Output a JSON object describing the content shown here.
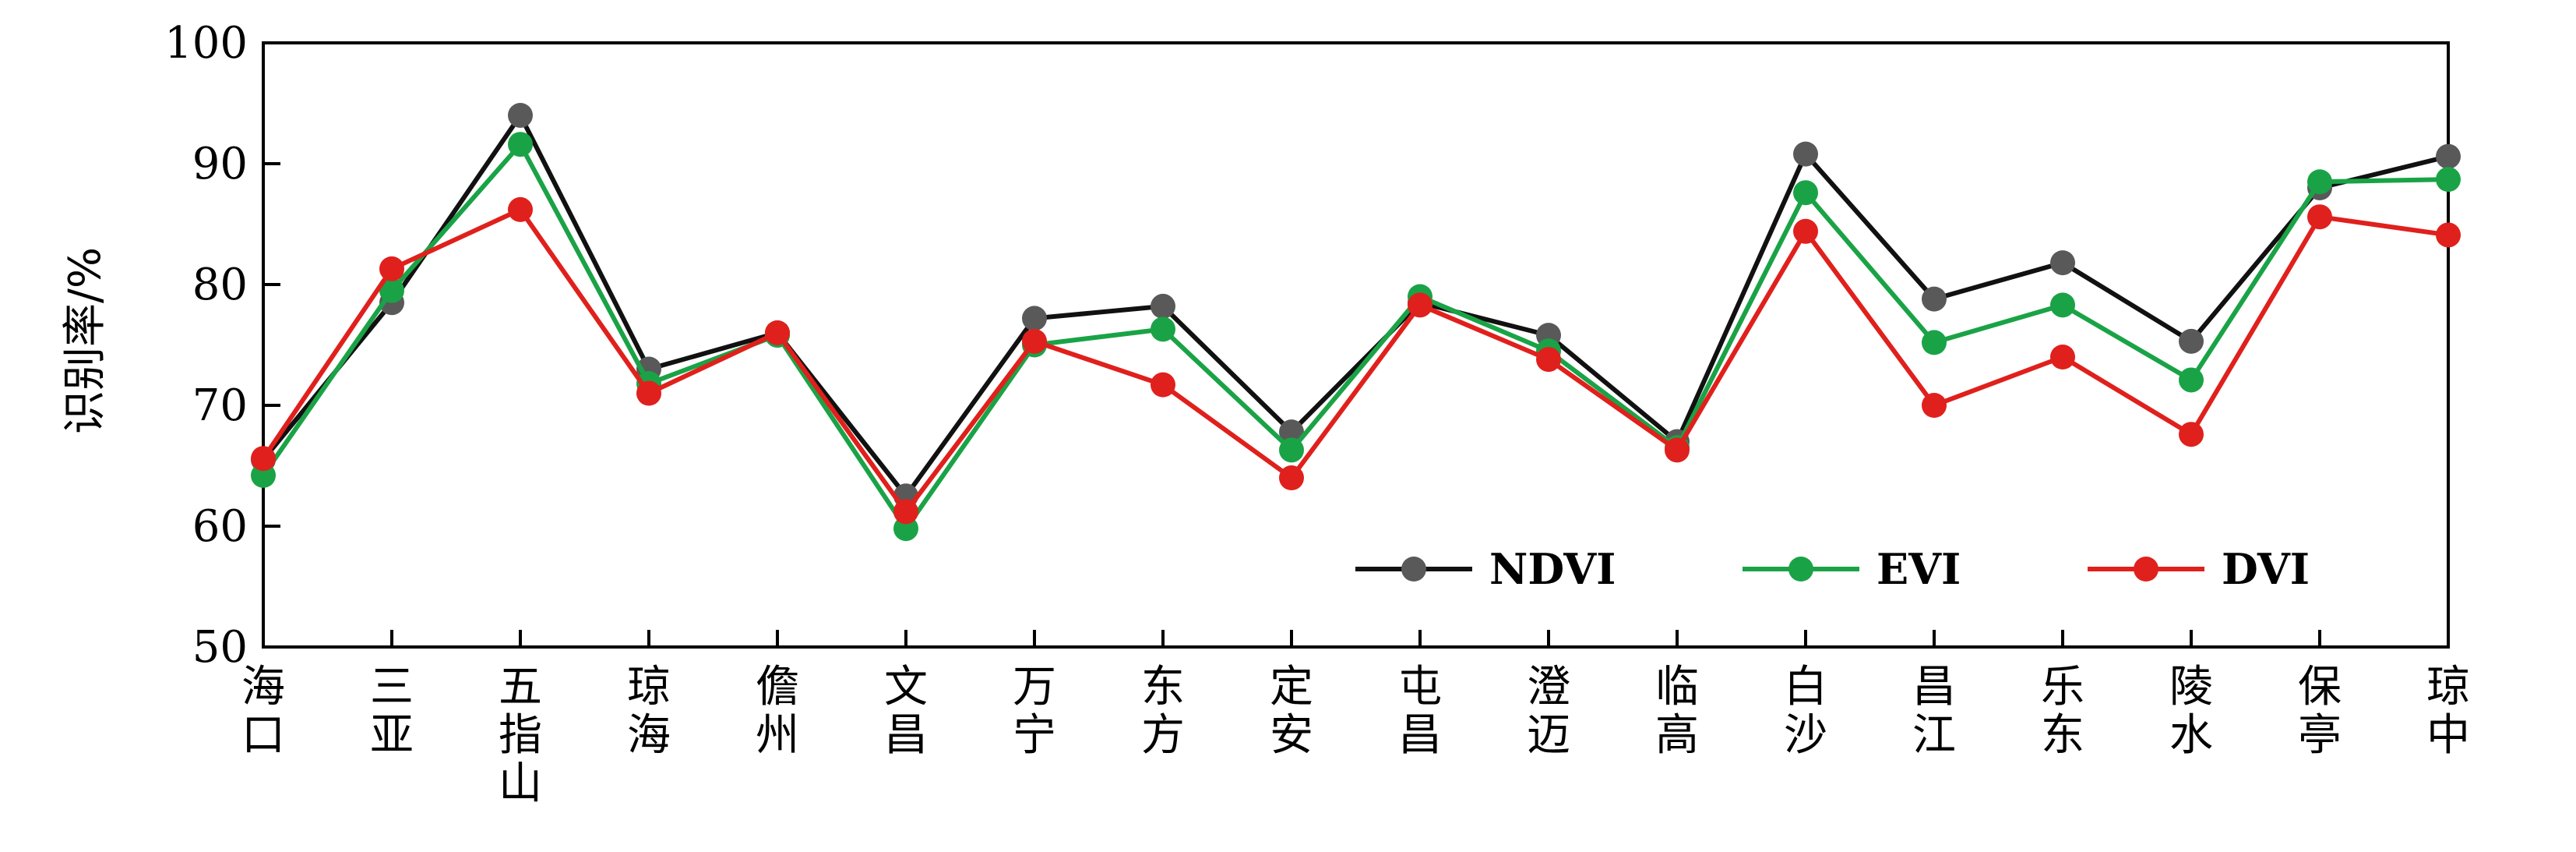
{
  "chart_data": {
    "type": "line",
    "ylabel": "识别率/%",
    "ylim": [
      50,
      100
    ],
    "yticks": [
      50,
      60,
      70,
      80,
      90,
      100
    ],
    "grid": false,
    "legend_position": "bottom-right",
    "categories": [
      "海口",
      "三亚",
      "五指山",
      "琼海",
      "儋州",
      "文昌",
      "万宁",
      "东方",
      "定安",
      "屯昌",
      "澄迈",
      "临高",
      "白沙",
      "昌江",
      "乐东",
      "陵水",
      "保亭",
      "琼中"
    ],
    "series": [
      {
        "name": "NDVI",
        "color": "#111111",
        "marker_color": "#595959",
        "values": [
          65.5,
          78.5,
          94.0,
          73.0,
          76.0,
          62.5,
          77.2,
          78.2,
          67.8,
          78.5,
          75.8,
          67.0,
          90.8,
          78.8,
          81.8,
          75.3,
          88.0,
          90.6
        ]
      },
      {
        "name": "EVI",
        "color": "#1aa346",
        "marker_color": "#1aa346",
        "values": [
          64.2,
          79.5,
          91.6,
          71.8,
          75.8,
          59.8,
          75.0,
          76.3,
          66.3,
          79.0,
          74.5,
          66.5,
          87.6,
          75.2,
          78.3,
          72.1,
          88.5,
          88.7
        ]
      },
      {
        "name": "DVI",
        "color": "#e0201c",
        "marker_color": "#e0201c",
        "values": [
          65.6,
          81.3,
          86.2,
          71.0,
          76.0,
          61.2,
          75.3,
          71.7,
          64.0,
          78.3,
          73.8,
          66.3,
          84.4,
          70.0,
          74.0,
          67.6,
          85.6,
          84.1
        ]
      }
    ]
  }
}
